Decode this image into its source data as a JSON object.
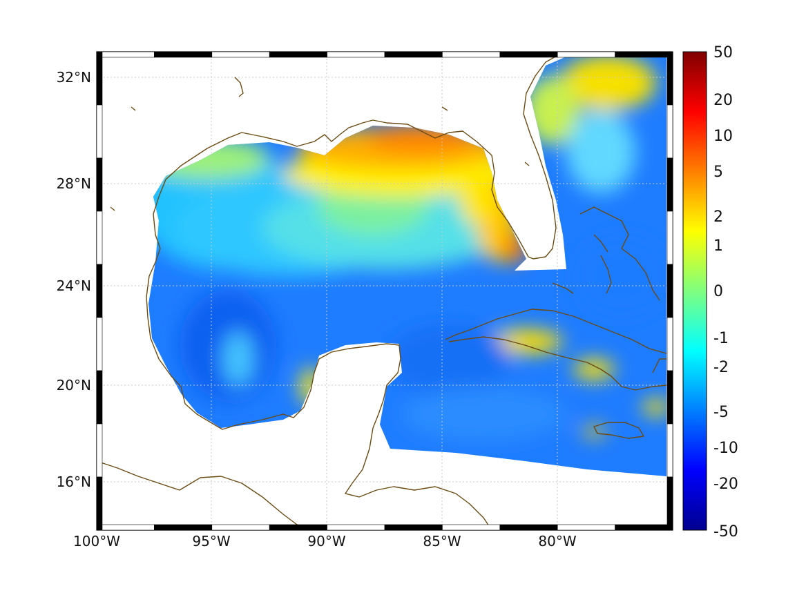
{
  "map": {
    "lat_labels": [
      {
        "label": "32°N",
        "lat": 32
      },
      {
        "label": "28°N",
        "lat": 28
      },
      {
        "label": "24°N",
        "lat": 24
      },
      {
        "label": "20°N",
        "lat": 20
      },
      {
        "label": "16°N",
        "lat": 16
      }
    ],
    "lon_labels": [
      {
        "label": "100°W",
        "lon": -100
      },
      {
        "label": "95°W",
        "lon": -95
      },
      {
        "label": "90°W",
        "lon": -90
      },
      {
        "label": "85°W",
        "lon": -85
      },
      {
        "label": "80°W",
        "lon": -80
      }
    ],
    "extent": {
      "lon_min": -100,
      "lon_max": -75,
      "lat_min": 14.6,
      "lat_max": 33
    },
    "grid": true,
    "coastline_color": "#6b4a12",
    "land_color": "#ffffff"
  },
  "colorbar": {
    "labels": [
      "50",
      "20",
      "10",
      "5",
      "2",
      "1",
      "0",
      "-1",
      "-2",
      "-5",
      "-10",
      "-20",
      "-50"
    ],
    "colormap": "jet",
    "position": "right"
  }
}
